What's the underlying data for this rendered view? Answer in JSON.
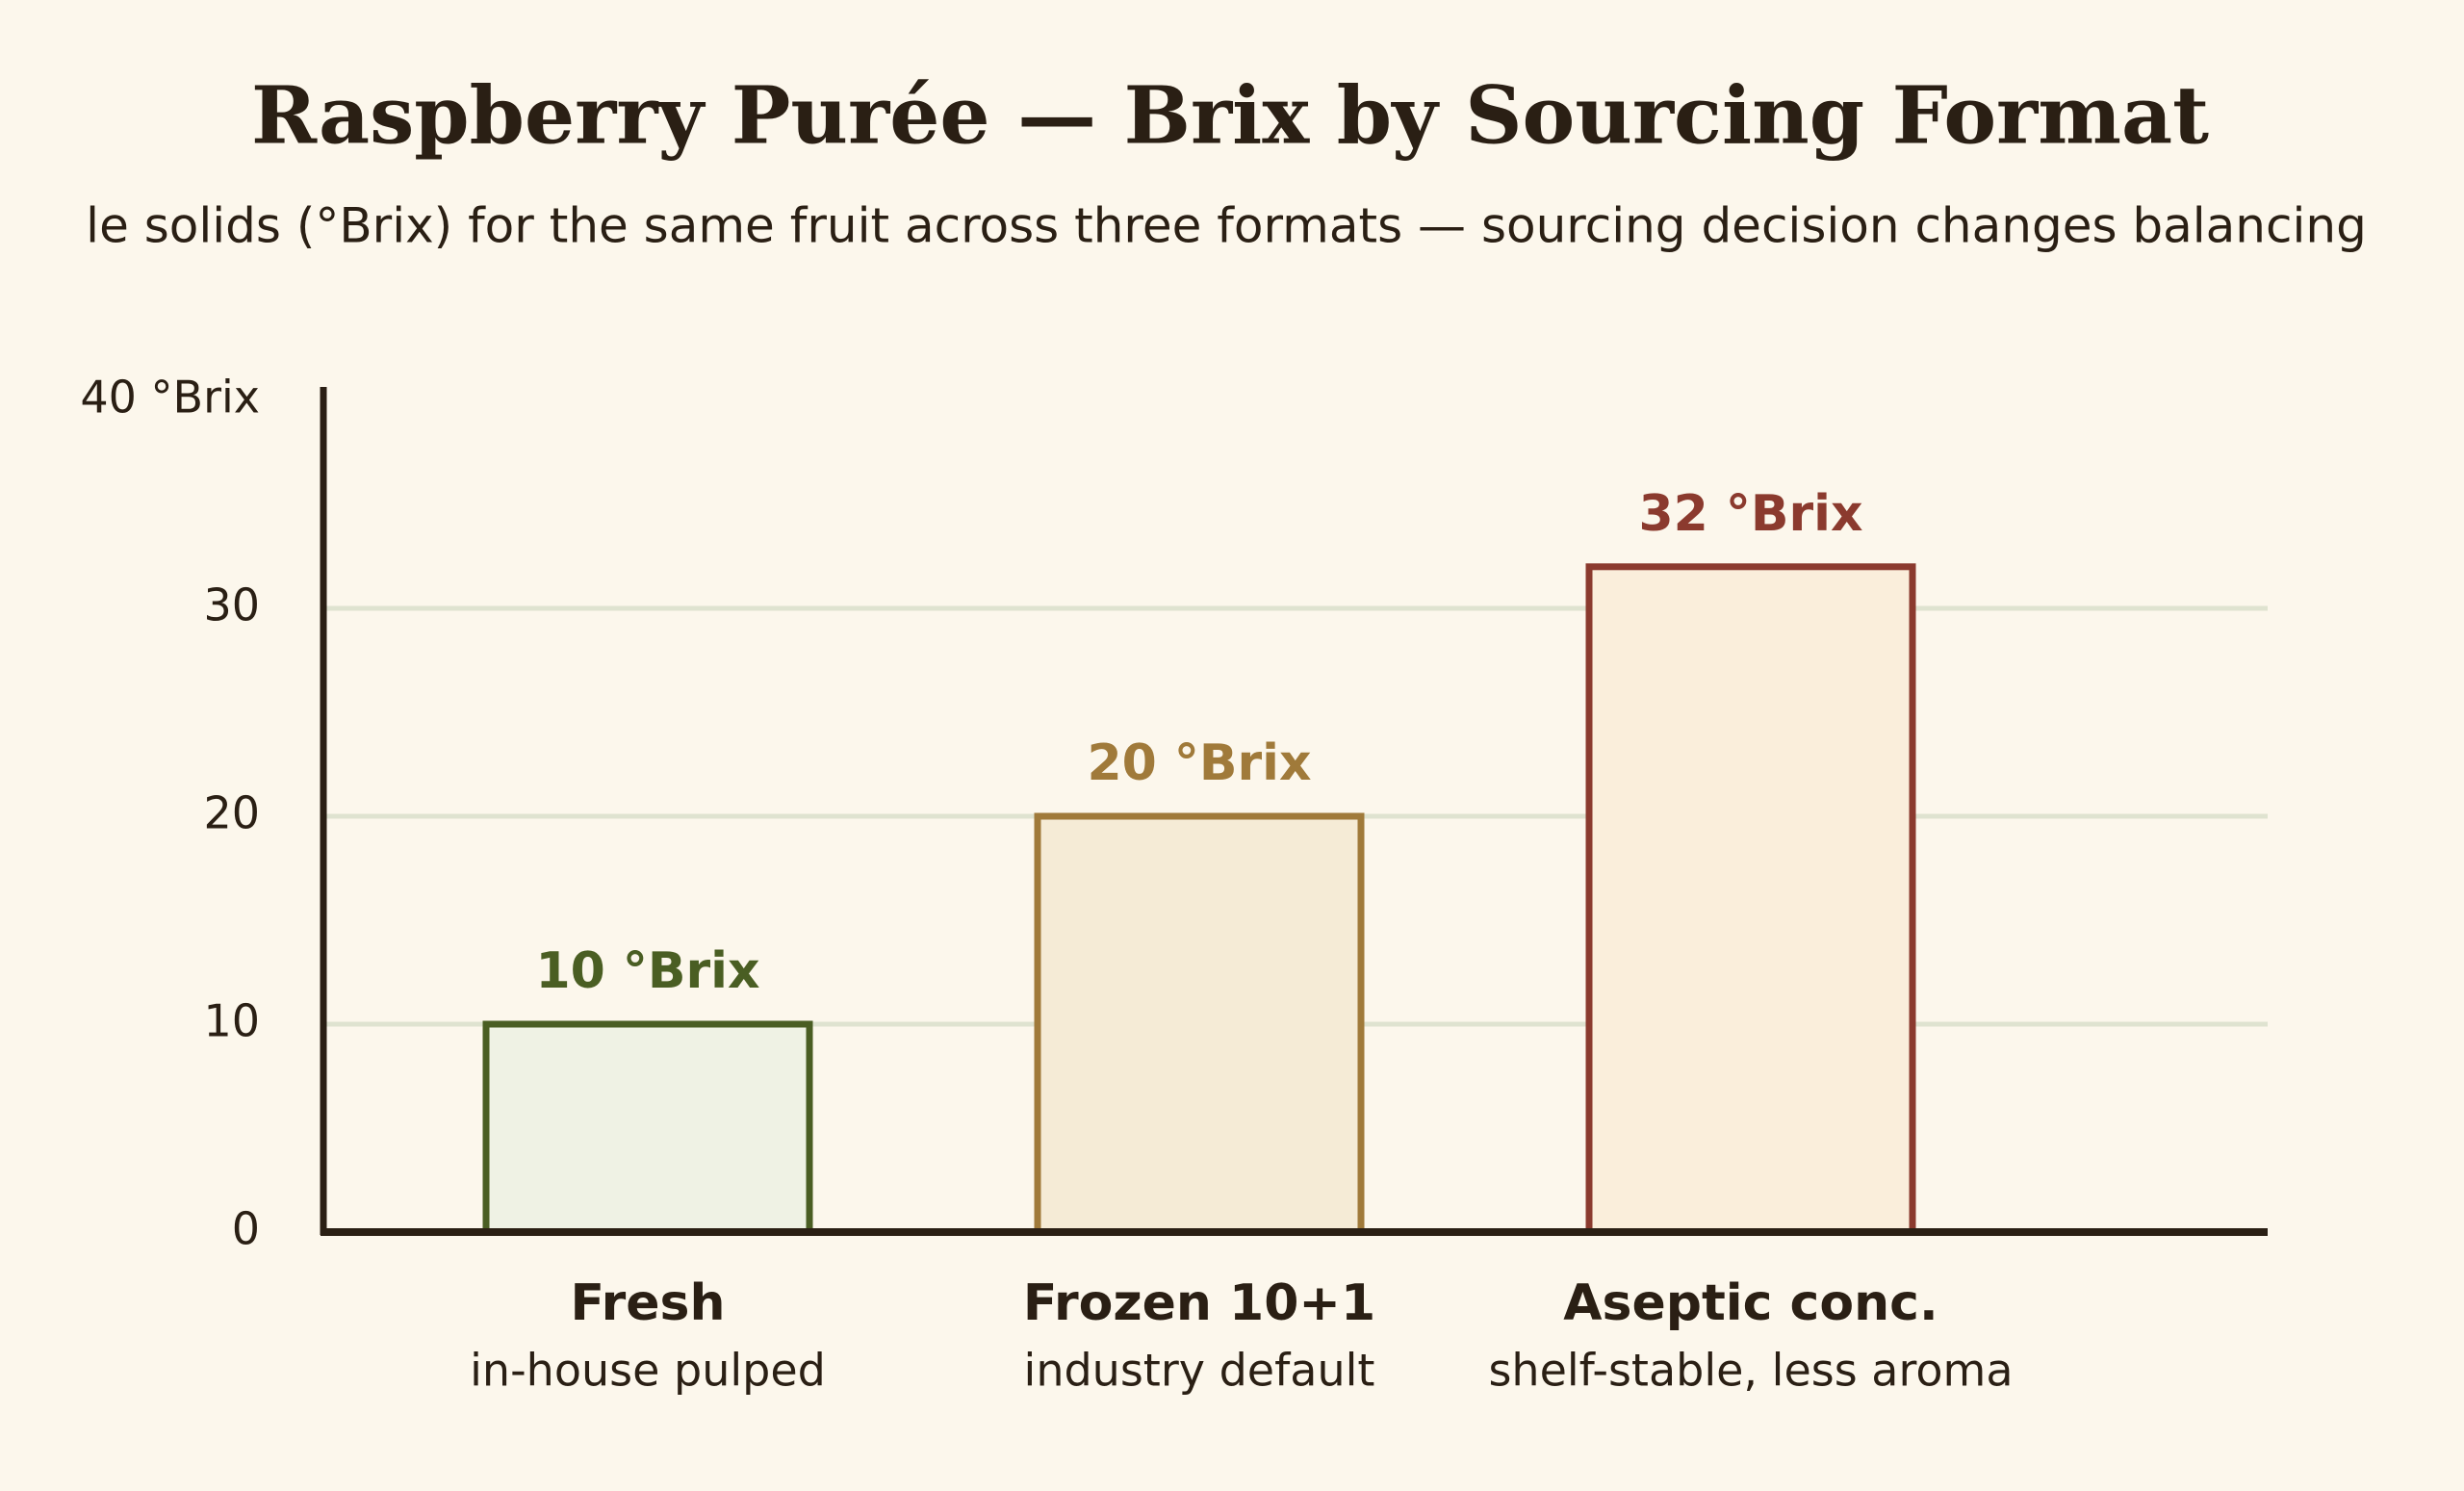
{
  "chart_data": {
    "type": "bar",
    "title": "Raspberry Purée — Brix by Sourcing Format",
    "subtitle": "le solids (°Brix) for the same fruit across three formats — sourcing decision changes balancing",
    "categories": [
      "Fresh",
      "Frozen 10+1",
      "Aseptic conc."
    ],
    "category_notes": [
      "in-house pulped",
      "industry default",
      "shelf-stable, less aroma"
    ],
    "values": [
      10,
      20,
      32
    ],
    "value_labels": [
      "10 °Brix",
      "20 °Brix",
      "32 °Brix"
    ],
    "colors": [
      "#4a5e23",
      "#a07a3a",
      "#8b3a2e"
    ],
    "fill_colors": [
      "#eff2e4",
      "#f5ebd6",
      "#faeedb"
    ],
    "ylim": [
      0,
      40
    ],
    "yticks": [
      0,
      10,
      20,
      30,
      {
        "value": 40,
        "label": "40 °Brix"
      }
    ],
    "grid": true
  }
}
